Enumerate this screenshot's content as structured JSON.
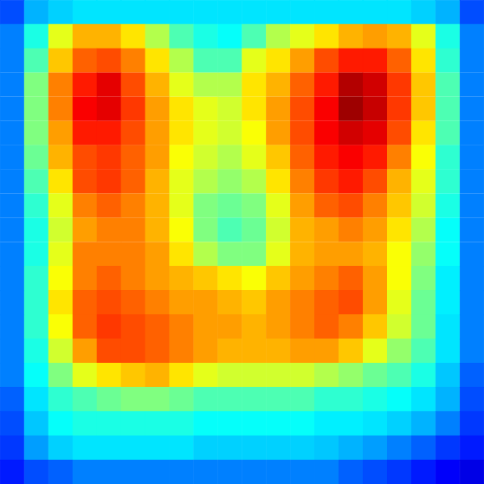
{
  "chart_data": {
    "type": "heatmap",
    "tick_labels": false,
    "grid": false,
    "color_range": [
      0,
      1
    ],
    "cells": [
      [
        0.2,
        0.3,
        0.33,
        0.35,
        0.35,
        0.35,
        0.35,
        0.35,
        0.35,
        0.35,
        0.35,
        0.35,
        0.35,
        0.35,
        0.35,
        0.35,
        0.35,
        0.33,
        0.3,
        0.2
      ],
      [
        0.25,
        0.4,
        0.6,
        0.7,
        0.7,
        0.65,
        0.55,
        0.45,
        0.4,
        0.38,
        0.45,
        0.55,
        0.6,
        0.65,
        0.7,
        0.72,
        0.7,
        0.6,
        0.4,
        0.25
      ],
      [
        0.25,
        0.45,
        0.68,
        0.78,
        0.8,
        0.75,
        0.65,
        0.55,
        0.45,
        0.45,
        0.6,
        0.65,
        0.72,
        0.8,
        0.85,
        0.85,
        0.78,
        0.65,
        0.42,
        0.25
      ],
      [
        0.25,
        0.5,
        0.75,
        0.85,
        0.9,
        0.8,
        0.7,
        0.6,
        0.55,
        0.55,
        0.65,
        0.7,
        0.78,
        0.85,
        0.95,
        0.92,
        0.82,
        0.68,
        0.45,
        0.25
      ],
      [
        0.25,
        0.5,
        0.75,
        0.88,
        0.9,
        0.82,
        0.72,
        0.65,
        0.6,
        0.58,
        0.65,
        0.72,
        0.8,
        0.88,
        0.97,
        0.93,
        0.82,
        0.68,
        0.45,
        0.25
      ],
      [
        0.25,
        0.5,
        0.72,
        0.85,
        0.85,
        0.8,
        0.72,
        0.65,
        0.6,
        0.58,
        0.62,
        0.72,
        0.8,
        0.88,
        0.92,
        0.9,
        0.8,
        0.65,
        0.45,
        0.25
      ],
      [
        0.25,
        0.48,
        0.7,
        0.8,
        0.82,
        0.78,
        0.72,
        0.62,
        0.58,
        0.55,
        0.6,
        0.68,
        0.78,
        0.85,
        0.88,
        0.85,
        0.75,
        0.62,
        0.42,
        0.25
      ],
      [
        0.25,
        0.45,
        0.65,
        0.8,
        0.82,
        0.78,
        0.7,
        0.6,
        0.55,
        0.52,
        0.55,
        0.65,
        0.75,
        0.82,
        0.85,
        0.8,
        0.7,
        0.6,
        0.42,
        0.25
      ],
      [
        0.25,
        0.42,
        0.6,
        0.75,
        0.78,
        0.75,
        0.7,
        0.6,
        0.5,
        0.48,
        0.5,
        0.6,
        0.72,
        0.78,
        0.8,
        0.75,
        0.68,
        0.58,
        0.4,
        0.25
      ],
      [
        0.25,
        0.4,
        0.58,
        0.72,
        0.75,
        0.75,
        0.7,
        0.62,
        0.5,
        0.45,
        0.48,
        0.58,
        0.7,
        0.72,
        0.75,
        0.72,
        0.65,
        0.55,
        0.38,
        0.25
      ],
      [
        0.25,
        0.4,
        0.6,
        0.75,
        0.75,
        0.75,
        0.72,
        0.65,
        0.55,
        0.5,
        0.5,
        0.6,
        0.7,
        0.72,
        0.72,
        0.7,
        0.62,
        0.52,
        0.38,
        0.25
      ],
      [
        0.25,
        0.42,
        0.62,
        0.75,
        0.78,
        0.75,
        0.72,
        0.7,
        0.68,
        0.65,
        0.62,
        0.68,
        0.72,
        0.75,
        0.78,
        0.72,
        0.62,
        0.5,
        0.36,
        0.25
      ],
      [
        0.25,
        0.42,
        0.65,
        0.78,
        0.8,
        0.78,
        0.75,
        0.72,
        0.72,
        0.7,
        0.68,
        0.72,
        0.75,
        0.78,
        0.8,
        0.72,
        0.6,
        0.48,
        0.36,
        0.25
      ],
      [
        0.25,
        0.42,
        0.62,
        0.78,
        0.82,
        0.8,
        0.78,
        0.75,
        0.72,
        0.72,
        0.7,
        0.72,
        0.75,
        0.78,
        0.75,
        0.68,
        0.58,
        0.48,
        0.35,
        0.25
      ],
      [
        0.25,
        0.4,
        0.58,
        0.72,
        0.8,
        0.8,
        0.78,
        0.75,
        0.72,
        0.7,
        0.7,
        0.7,
        0.72,
        0.72,
        0.68,
        0.6,
        0.52,
        0.45,
        0.35,
        0.25
      ],
      [
        0.25,
        0.38,
        0.5,
        0.6,
        0.65,
        0.68,
        0.7,
        0.65,
        0.6,
        0.58,
        0.58,
        0.58,
        0.58,
        0.55,
        0.52,
        0.48,
        0.45,
        0.4,
        0.32,
        0.22
      ],
      [
        0.22,
        0.35,
        0.42,
        0.45,
        0.48,
        0.5,
        0.5,
        0.48,
        0.45,
        0.45,
        0.45,
        0.45,
        0.45,
        0.42,
        0.42,
        0.4,
        0.38,
        0.35,
        0.3,
        0.2
      ],
      [
        0.2,
        0.32,
        0.38,
        0.4,
        0.4,
        0.4,
        0.4,
        0.4,
        0.38,
        0.38,
        0.38,
        0.38,
        0.38,
        0.36,
        0.36,
        0.35,
        0.33,
        0.3,
        0.25,
        0.18
      ],
      [
        0.18,
        0.28,
        0.33,
        0.35,
        0.35,
        0.35,
        0.35,
        0.35,
        0.33,
        0.33,
        0.33,
        0.33,
        0.33,
        0.32,
        0.3,
        0.28,
        0.25,
        0.22,
        0.18,
        0.15
      ],
      [
        0.15,
        0.2,
        0.22,
        0.25,
        0.25,
        0.25,
        0.25,
        0.25,
        0.25,
        0.25,
        0.25,
        0.25,
        0.25,
        0.25,
        0.22,
        0.2,
        0.18,
        0.15,
        0.12,
        0.1
      ]
    ]
  }
}
